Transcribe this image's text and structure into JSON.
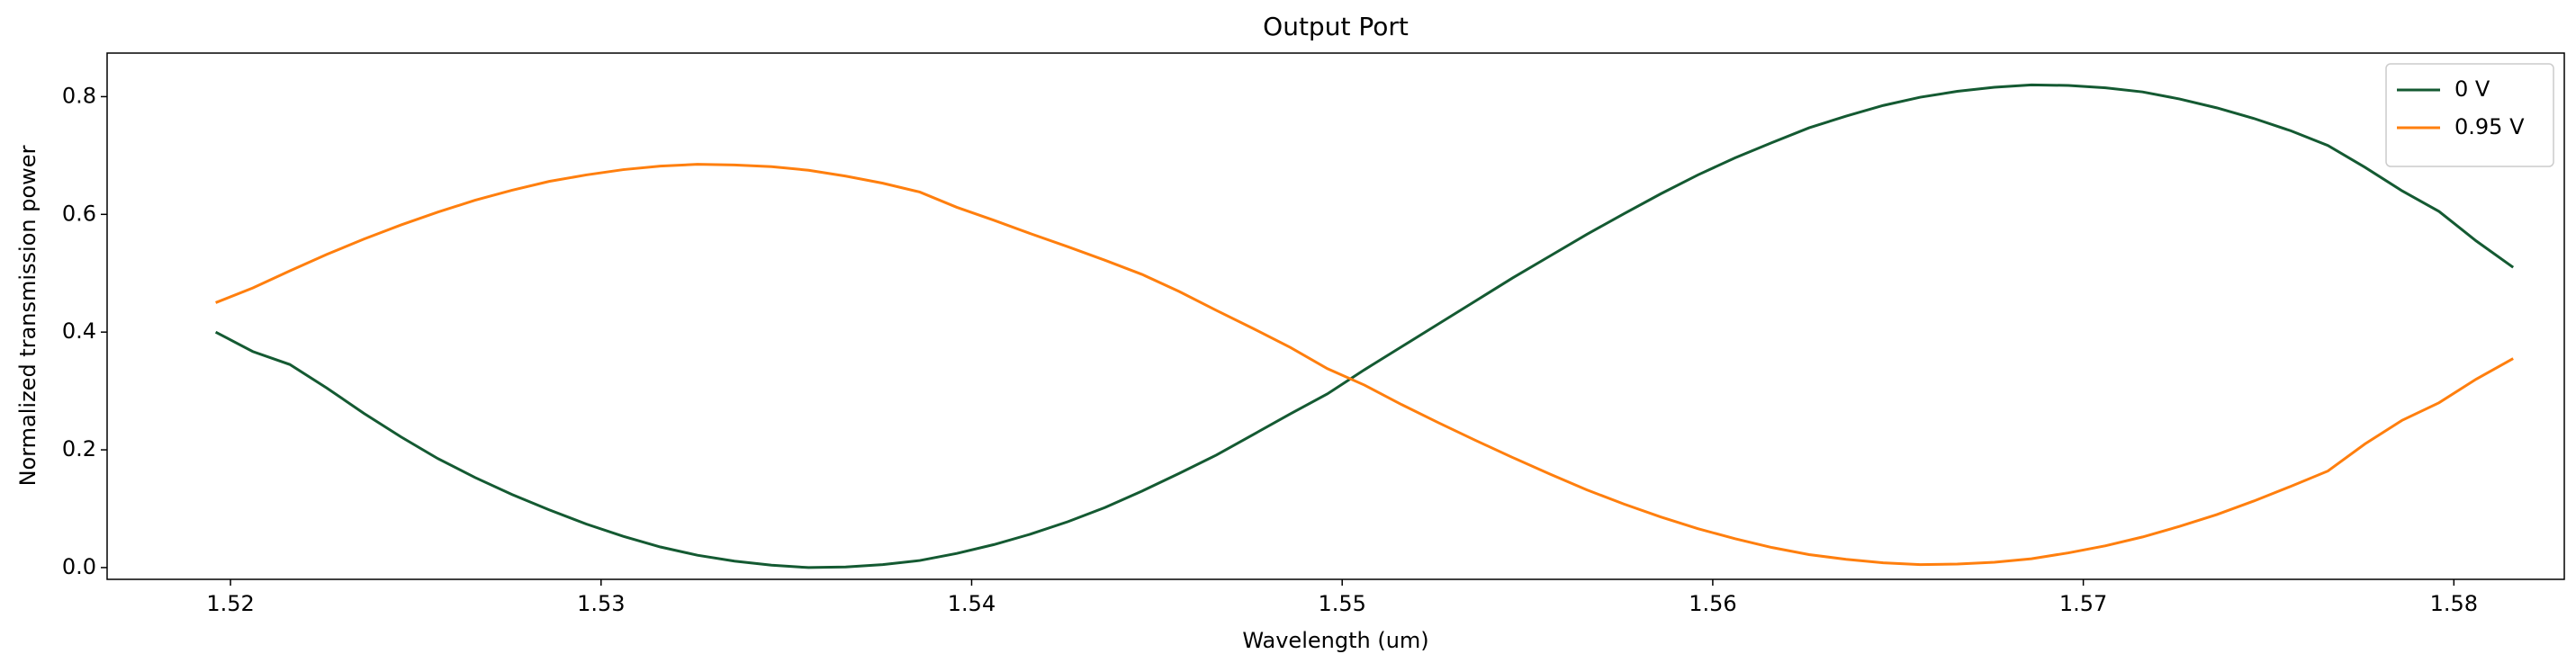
{
  "chart_data": {
    "type": "line",
    "title": "Output Port",
    "x_label": "Wavelength (um)",
    "y_label": "Normalized transmission power",
    "x": [
      1.5196,
      1.5206,
      1.5216,
      1.5226,
      1.5236,
      1.5246,
      1.5256,
      1.5266,
      1.5276,
      1.5286,
      1.5296,
      1.5306,
      1.5316,
      1.5326,
      1.5336,
      1.5346,
      1.5356,
      1.5366,
      1.5376,
      1.5386,
      1.5396,
      1.5406,
      1.5416,
      1.5426,
      1.5436,
      1.5446,
      1.5456,
      1.5466,
      1.5476,
      1.5486,
      1.5496,
      1.5506,
      1.5516,
      1.5526,
      1.5536,
      1.5546,
      1.5556,
      1.5566,
      1.5576,
      1.5586,
      1.5596,
      1.5606,
      1.5616,
      1.5626,
      1.5636,
      1.5646,
      1.5656,
      1.5666,
      1.5676,
      1.5686,
      1.5696,
      1.5706,
      1.5716,
      1.5726,
      1.5736,
      1.5746,
      1.5756,
      1.5766,
      1.5776,
      1.5786,
      1.5796,
      1.5806,
      1.5816
    ],
    "series": [
      {
        "name": "0 V",
        "color": "#145a32",
        "values": [
          0.4,
          0.367,
          0.345,
          0.305,
          0.262,
          0.222,
          0.185,
          0.153,
          0.124,
          0.098,
          0.074,
          0.053,
          0.035,
          0.021,
          0.011,
          0.004,
          0.0,
          0.001,
          0.005,
          0.012,
          0.024,
          0.039,
          0.057,
          0.078,
          0.102,
          0.13,
          0.16,
          0.191,
          0.226,
          0.261,
          0.295,
          0.336,
          0.375,
          0.414,
          0.453,
          0.492,
          0.529,
          0.566,
          0.601,
          0.635,
          0.667,
          0.696,
          0.722,
          0.747,
          0.767,
          0.785,
          0.799,
          0.809,
          0.816,
          0.82,
          0.819,
          0.815,
          0.808,
          0.796,
          0.781,
          0.763,
          0.742,
          0.717,
          0.68,
          0.64,
          0.605,
          0.555,
          0.51
        ]
      },
      {
        "name": "0.95 V",
        "color": "#ff7f0e",
        "values": [
          0.45,
          0.475,
          0.504,
          0.532,
          0.558,
          0.582,
          0.604,
          0.624,
          0.641,
          0.656,
          0.667,
          0.676,
          0.682,
          0.685,
          0.684,
          0.681,
          0.675,
          0.665,
          0.653,
          0.638,
          0.612,
          0.59,
          0.567,
          0.545,
          0.522,
          0.498,
          0.469,
          0.437,
          0.406,
          0.374,
          0.338,
          0.31,
          0.277,
          0.246,
          0.216,
          0.187,
          0.159,
          0.132,
          0.108,
          0.086,
          0.066,
          0.049,
          0.034,
          0.022,
          0.014,
          0.008,
          0.005,
          0.006,
          0.009,
          0.015,
          0.025,
          0.037,
          0.052,
          0.07,
          0.09,
          0.113,
          0.138,
          0.164,
          0.21,
          0.25,
          0.28,
          0.32,
          0.355
        ]
      }
    ],
    "xlim": [
      1.51667,
      1.58298
    ],
    "xticks": [
      1.52,
      1.53,
      1.54,
      1.55,
      1.56,
      1.57,
      1.58
    ],
    "ylim": [
      -0.02,
      0.874
    ],
    "yticks": [
      {
        "value": 0,
        "label": "0.0"
      },
      0.2,
      0.4,
      0.6,
      0.8
    ],
    "legend": "upper right",
    "grid": false
  }
}
